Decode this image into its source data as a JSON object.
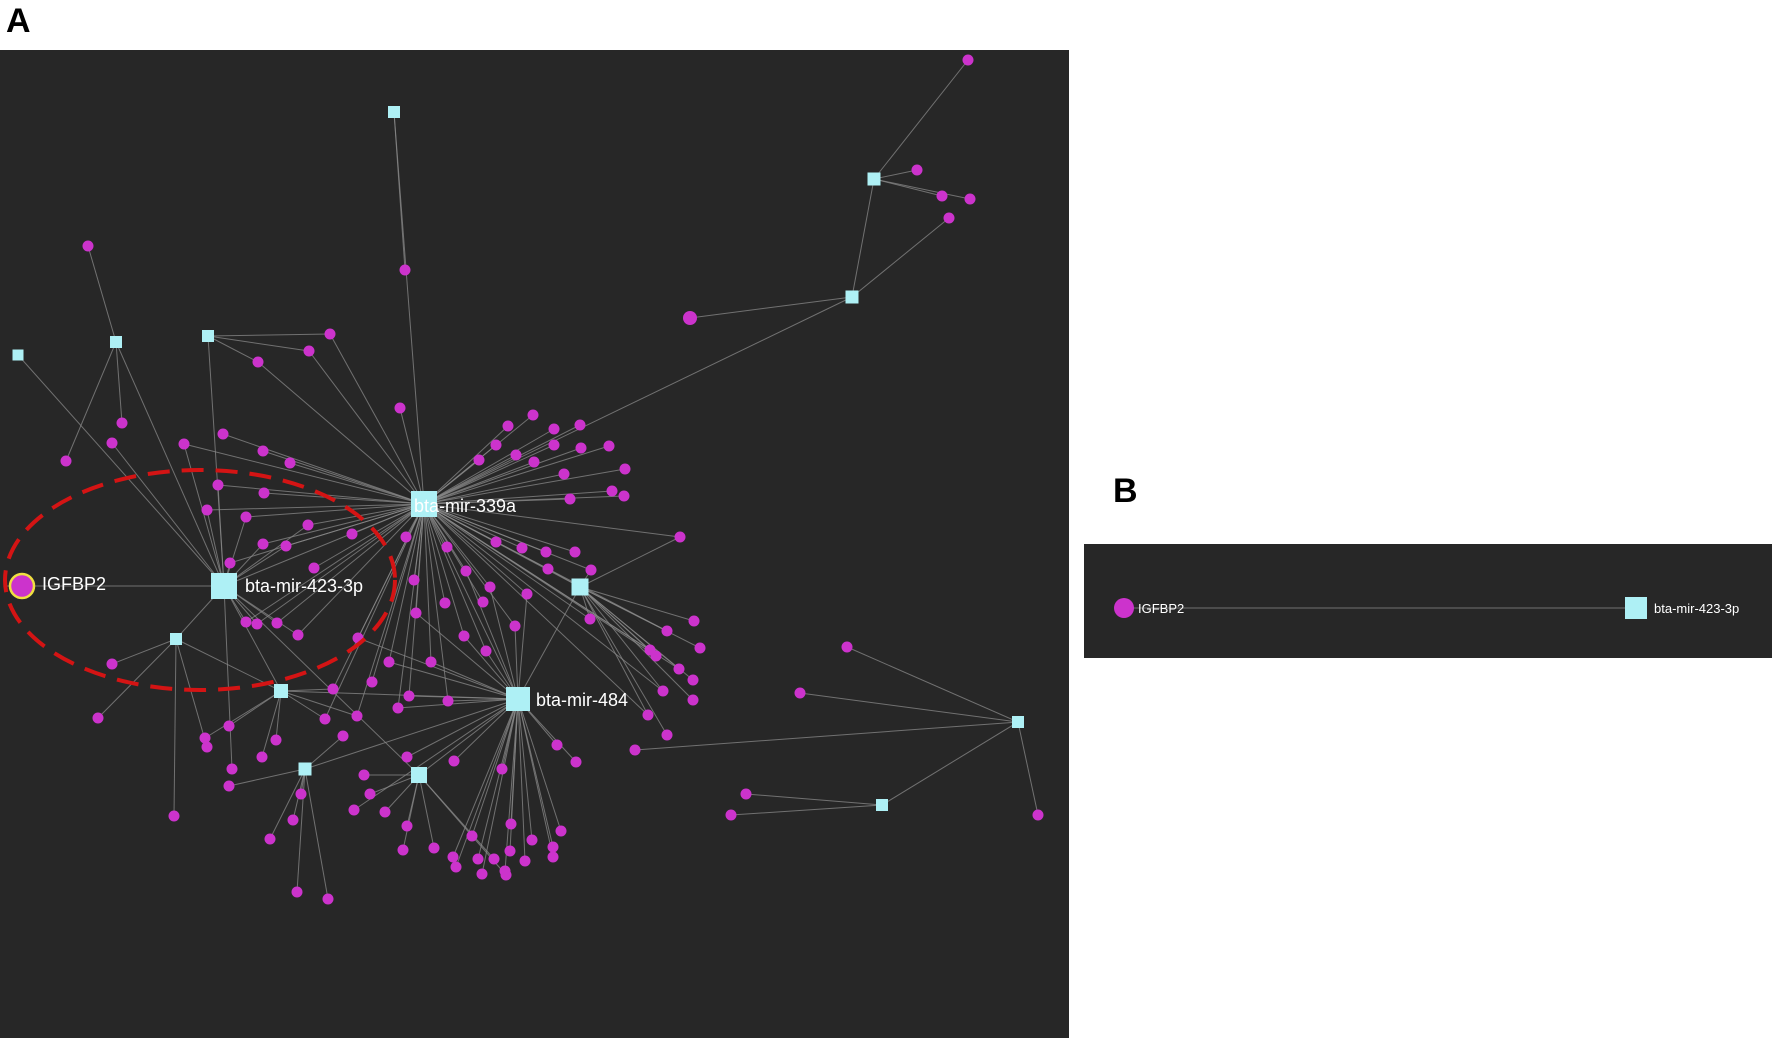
{
  "panels": {
    "a": {
      "letter": "A"
    },
    "b": {
      "letter": "B"
    }
  },
  "colors": {
    "background": "#272727",
    "gene_node": "#cc33cc",
    "mirna_node": "#aef0f5",
    "edge": "#8a8a8a",
    "highlight_ellipse": "#d41414",
    "highlight_ring": "#f0e040"
  },
  "network_a": {
    "labels": {
      "mir339a": "bta-mir-339a",
      "mir4233p": "bta-mir-423-3p",
      "mir484": "bta-mir-484",
      "igfbp2": "IGFBP2"
    }
  },
  "network_b": {
    "gene": "IGFBP2",
    "mirna": "bta-mir-423-3p"
  }
}
